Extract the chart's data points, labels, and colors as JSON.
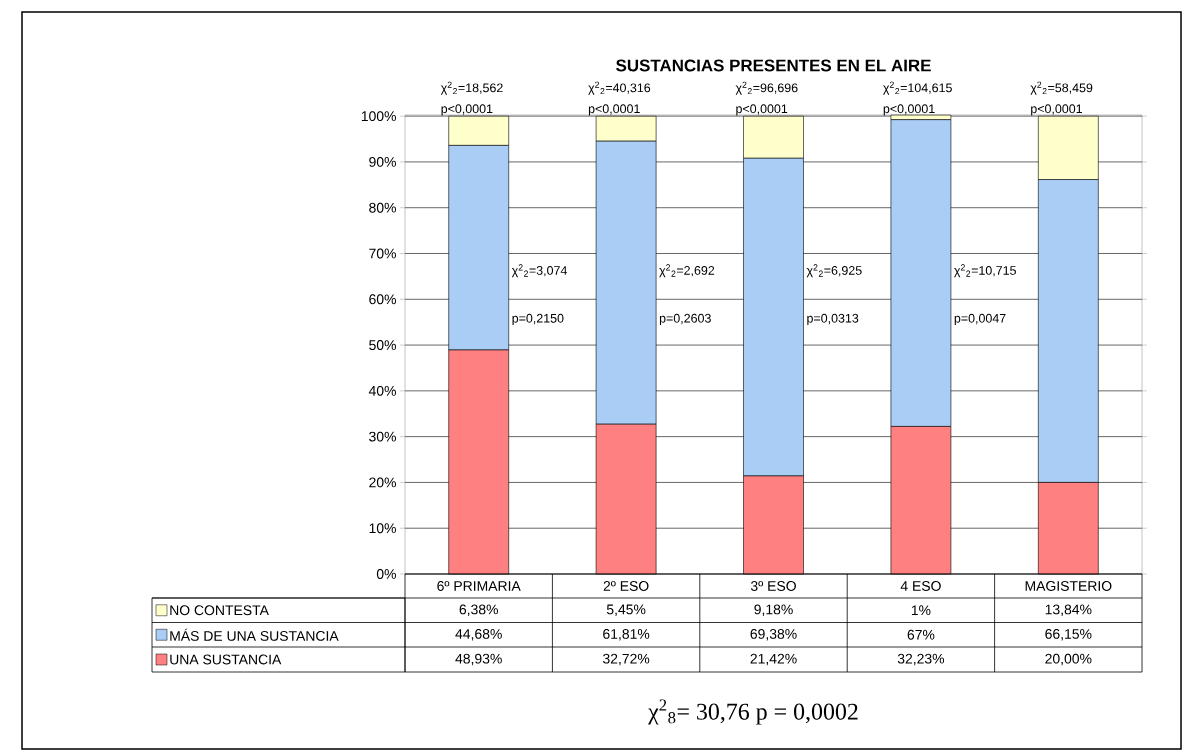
{
  "chart_data": {
    "type": "bar",
    "stacked": true,
    "title": "SUSTANCIAS PRESENTES EN EL AIRE",
    "categories": [
      "6º PRIMARIA",
      "2º ESO",
      "3º ESO",
      "4 ESO",
      "MAGISTERIO"
    ],
    "series": [
      {
        "name": "UNA SUSTANCIA",
        "color": "#ff8080",
        "values": [
          48.93,
          32.72,
          21.42,
          32.23,
          20.0
        ],
        "value_labels": [
          "48,93%",
          "32,72%",
          "21,42%",
          "32,23%",
          "20,00%"
        ]
      },
      {
        "name": "MÁS DE UNA SUSTANCIA",
        "color": "#a9cdf5",
        "values": [
          44.68,
          61.81,
          69.38,
          67,
          66.15
        ],
        "value_labels": [
          "44,68%",
          "61,81%",
          "69,38%",
          "67%",
          "66,15%"
        ]
      },
      {
        "name": "NO CONTESTA",
        "color": "#ffffcc",
        "values": [
          6.38,
          5.45,
          9.18,
          1,
          13.84
        ],
        "value_labels": [
          "6,38%",
          "5,45%",
          "9,18%",
          "1%",
          "13,84%"
        ]
      }
    ],
    "ylim": [
      0,
      100.25
    ],
    "yticks": [
      {
        "value": 0,
        "label": "0%"
      },
      {
        "value": 10,
        "label": "10%"
      },
      {
        "value": 20,
        "label": "20%"
      },
      {
        "value": 30,
        "label": "30%"
      },
      {
        "value": 40,
        "label": "40%"
      },
      {
        "value": 50,
        "label": "50%"
      },
      {
        "value": 60,
        "label": "60%"
      },
      {
        "value": 70,
        "label": "70%"
      },
      {
        "value": 80,
        "label": "80%"
      },
      {
        "value": 90,
        "label": "90%"
      },
      {
        "value": 100,
        "label": "100%"
      }
    ],
    "grid": "y",
    "legend": "bottom",
    "annotations": [
      {
        "text": "χ$^{2}$$_{2}$=18,562 p<0,0001",
        "x": "6º PRIMARIA",
        "y": 100
      },
      {
        "text": "χ$^{2}$$_{2}$=40,316 p<0,0001",
        "x": "2º ESO",
        "y": 100
      },
      {
        "text": "χ$^{2}$$_{2}$=96,696 p<0,0001",
        "x": "3º ESO",
        "y": 100
      },
      {
        "text": "χ$^{2}$$_{2}$=104,615 p<0,0001",
        "x": "4 ESO",
        "y": 100
      },
      {
        "text": "χ$^{2}$$_{2}$=58,459 p<0,0001",
        "x": "MAGISTERIO",
        "y": 100
      },
      "χ$^{2}$$_{2}$=3,074 p=0,2150",
      "χ$^{2}$$_{2}$=2,692 p=0,2603",
      "χ$^{2}$$_{2}$=6,925 p=0,0313",
      "χ$^{2}$$_{2}$=10,715 p=0,0047",
      "χ$^{2}$$_{8}$= 30,76 p = 0,0002"
    ]
  }
}
